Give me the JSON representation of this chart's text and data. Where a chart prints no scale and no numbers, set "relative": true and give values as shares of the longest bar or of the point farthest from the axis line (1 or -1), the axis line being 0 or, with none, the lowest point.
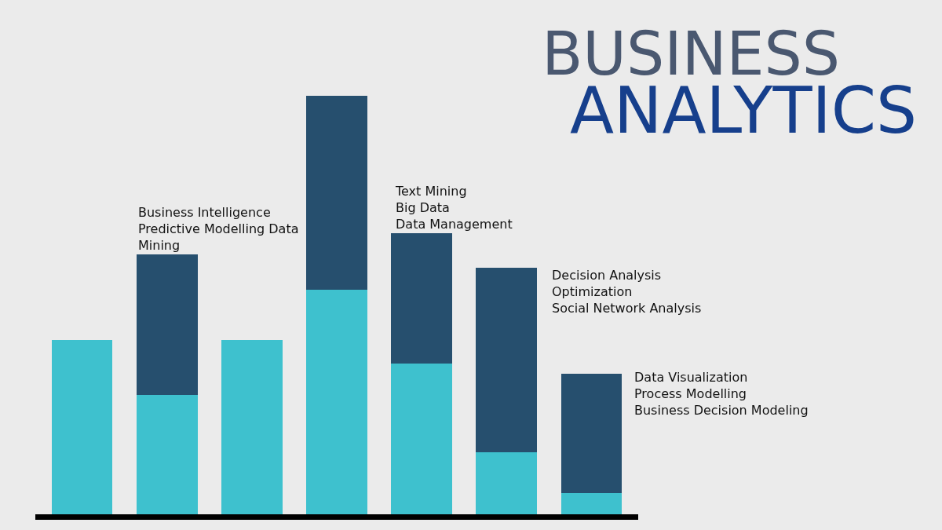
{
  "chart_data": {
    "type": "bar",
    "title": "BUSINESS",
    "subtitle": "ANALYTICS",
    "relative": true,
    "stacked": true,
    "categories": [
      null,
      null,
      null,
      null,
      null,
      null,
      null
    ],
    "series": [
      {
        "color": "#3ec1ce",
        "values": [
          0.416,
          0.285,
          0.416,
          0.537,
          0.361,
          0.149,
          0.051
        ]
      },
      {
        "color": "#264f6e",
        "values": [
          null,
          0.336,
          null,
          0.463,
          0.31,
          0.44,
          0.284
        ]
      }
    ],
    "annotations": [
      "Business Intelligence\nPredictive Modelling Data\nMining",
      "Text Mining\nBig Data\nData Management",
      "Decision Analysis\nOptimization\nSocial Network Analysis",
      "Data Visualization\nProcess Modelling\nBusiness Decision Modeling"
    ]
  }
}
